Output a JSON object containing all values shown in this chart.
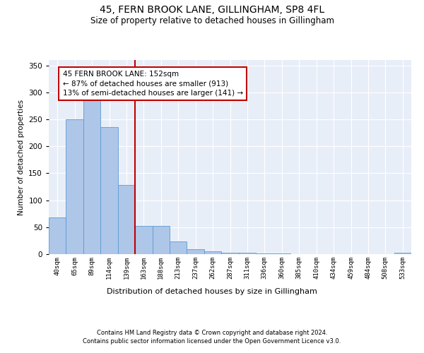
{
  "title": "45, FERN BROOK LANE, GILLINGHAM, SP8 4FL",
  "subtitle": "Size of property relative to detached houses in Gillingham",
  "xlabel": "Distribution of detached houses by size in Gillingham",
  "ylabel": "Number of detached properties",
  "bin_labels": [
    "40sqm",
    "65sqm",
    "89sqm",
    "114sqm",
    "139sqm",
    "163sqm",
    "188sqm",
    "213sqm",
    "237sqm",
    "262sqm",
    "287sqm",
    "311sqm",
    "336sqm",
    "360sqm",
    "385sqm",
    "410sqm",
    "434sqm",
    "459sqm",
    "484sqm",
    "508sqm",
    "533sqm"
  ],
  "bar_heights": [
    68,
    250,
    290,
    235,
    128,
    52,
    52,
    23,
    9,
    5,
    3,
    3,
    1,
    1,
    0,
    0,
    0,
    0,
    0,
    0,
    3
  ],
  "bar_color": "#aec6e8",
  "bar_edge_color": "#5b9bd5",
  "marker_bin": 4,
  "marker_color": "#c00000",
  "annotation_line1": "45 FERN BROOK LANE: 152sqm",
  "annotation_line2": "← 87% of detached houses are smaller (913)",
  "annotation_line3": "13% of semi-detached houses are larger (141) →",
  "annotation_box_color": "#ffffff",
  "annotation_box_edge": "#c00000",
  "ylim": [
    0,
    360
  ],
  "yticks": [
    0,
    50,
    100,
    150,
    200,
    250,
    300,
    350
  ],
  "footer_line1": "Contains HM Land Registry data © Crown copyright and database right 2024.",
  "footer_line2": "Contains public sector information licensed under the Open Government Licence v3.0.",
  "background_color": "#e8eef8",
  "fig_background": "#ffffff",
  "title_fontsize": 10,
  "subtitle_fontsize": 8.5,
  "ylabel_fontsize": 7.5,
  "xtick_fontsize": 6.5,
  "ytick_fontsize": 7.5,
  "xlabel_fontsize": 8,
  "footer_fontsize": 6,
  "annotation_fontsize": 7.5
}
